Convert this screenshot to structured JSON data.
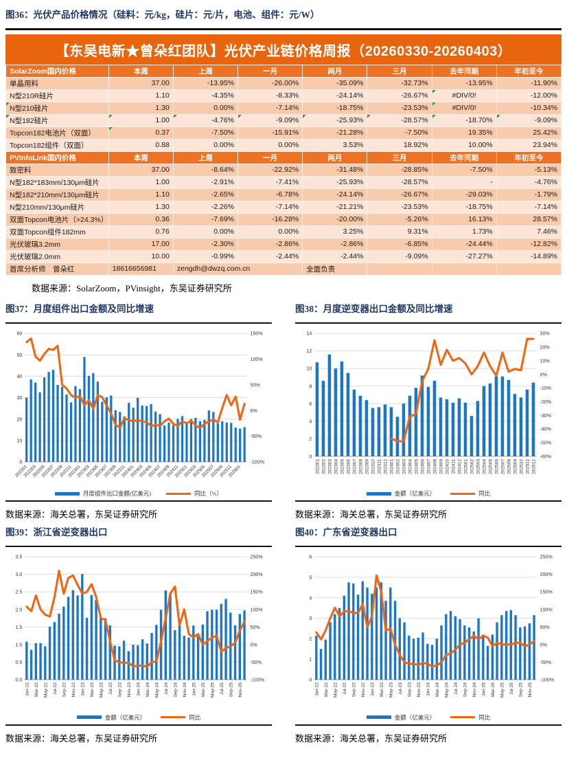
{
  "figure36": {
    "title": "图36：光伏产品价格情况（硅料：元/kg，硅片：元/片，电池、组件：元/W）",
    "source": "数据来源：SolarZoom，PVinsight，东吴证券研究所"
  },
  "price_table": {
    "title": "【东吴电新★曾朵红团队】光伏产业链价格周报（20260330-20260403）",
    "columns": [
      "本周",
      "上周",
      "一月",
      "两月",
      "三月",
      "去年同期",
      "年初至今"
    ],
    "sections": [
      {
        "header": "SolarZoom国内价格",
        "rows": [
          {
            "label": "单晶用料",
            "values": [
              "37.00",
              "-13.95%",
              "-26.00%",
              "-35.09%",
              "-32.73%",
              "-13.95%",
              "-11.90%"
            ],
            "flags": []
          },
          {
            "label": "N型210R硅片",
            "values": [
              "1.10",
              "-4.35%",
              "-8.33%",
              "-24.14%",
              "-26.67%",
              "#DIV/0!",
              "-12.00%"
            ],
            "flags": [
              6
            ]
          },
          {
            "label": "N型210硅片",
            "values": [
              "1.30",
              "0.00%",
              "-7.14%",
              "-18.75%",
              "-23.53%",
              "#DIV/0!",
              "-10.34%"
            ],
            "flags": [
              0,
              6
            ]
          },
          {
            "label": "N型182硅片",
            "values": [
              "1.00",
              "-4.76%",
              "-9.09%",
              "-25.93%",
              "-28.57%",
              "-18.70%",
              "-9.09%"
            ],
            "flags": [
              0,
              1,
              2,
              3,
              4,
              5,
              6,
              7
            ]
          },
          {
            "label": "Topcon182电池片（双面）",
            "values": [
              "0.37",
              "-7.50%",
              "-15.91%",
              "-21.28%",
              "-7.50%",
              "19.35%",
              "25.42%"
            ],
            "flags": [
              1
            ]
          },
          {
            "label": "Topcon182组件（双面）",
            "values": [
              "0.88",
              "0.00%",
              "0.00%",
              "3.53%",
              "18.92%",
              "10.00%",
              "23.94%"
            ],
            "flags": []
          }
        ]
      },
      {
        "header": "PVInfoLink国内价格",
        "rows": [
          {
            "label": "致密料",
            "values": [
              "37.00",
              "-8.64%",
              "-22.92%",
              "-31.48%",
              "-28.85%",
              "-7.50%",
              "-5.13%"
            ],
            "flags": []
          },
          {
            "label": "N型182*183mm/130μm硅片",
            "values": [
              "1.00",
              "-2.91%",
              "-7.41%",
              "-25.93%",
              "-28.57%",
              "-",
              "-4.76%"
            ],
            "flags": []
          },
          {
            "label": "N型182*210mm/130μm硅片",
            "values": [
              "1.10",
              "-2.65%",
              "-6.78%",
              "-24.14%",
              "-26.67%",
              "-29.03%",
              "-1.79%"
            ],
            "flags": []
          },
          {
            "label": "N型210mm/130μm硅片",
            "values": [
              "1.30",
              "-2.26%",
              "-7.14%",
              "-21.21%",
              "-23.53%",
              "-18.75%",
              "-7.14%"
            ],
            "flags": []
          },
          {
            "label": "双面Topcon电池片（>24.3%）",
            "values": [
              "0.36",
              "-7.69%",
              "-16.28%",
              "-20.00%",
              "-5.26%",
              "16.13%",
              "28.57%"
            ],
            "flags": []
          },
          {
            "label": "双面Topcon组件182mm",
            "values": [
              "0.76",
              "0.00%",
              "0.00%",
              "3.25%",
              "9.31%",
              "1.73%",
              "7.46%"
            ],
            "flags": []
          },
          {
            "label": "光伏玻璃3.2mm",
            "values": [
              "17.00",
              "-2.30%",
              "-2.86%",
              "-2.86%",
              "-6.85%",
              "-24.44%",
              "-12.82%"
            ],
            "flags": []
          },
          {
            "label": "光伏玻璃2.0mm",
            "values": [
              "10.00",
              "-0.99%",
              "-2.44%",
              "-2.44%",
              "-9.09%",
              "-27.27%",
              "-14.89%"
            ],
            "flags": []
          }
        ]
      }
    ],
    "footer": {
      "analyst": "首席分析师　曾朵红",
      "phone": "18616656981",
      "email": "zengdh@dwzq.com.cn",
      "note": "全面负责"
    }
  },
  "figures": [
    {
      "title": "图37：月度组件出口金额及同比增速",
      "source": "数据来源：海关总署，东吴证券研究所"
    },
    {
      "title": "图38：月度逆变器出口金额及同比增速",
      "source": "数据来源：海关总署，东吴证券研究所"
    },
    {
      "title": "图39：浙江省逆变器出口",
      "source": "数据来源：海关总署，东吴证券研究所"
    },
    {
      "title": "图40：广东省逆变器出口",
      "source": "数据来源：海关总署，东吴证券研究所"
    }
  ],
  "chart_style": {
    "bar": "#1B76C5",
    "line": "#F06511",
    "grid": "#DCDCDC",
    "axis": "#9A9A9A",
    "tick": "#333333"
  },
  "chart_data": [
    {
      "type": "bar",
      "title": "月度组件出口金额及同比增速",
      "legend_position": "bottom",
      "grid": true,
      "categories": [
        "202201",
        "202202",
        "202203",
        "202204",
        "202205",
        "202206",
        "202207",
        "202208",
        "202209",
        "202210",
        "202211",
        "202212",
        "202301",
        "202302",
        "202303",
        "202304",
        "202305",
        "202306",
        "202307",
        "202308",
        "202309",
        "202310",
        "202311",
        "202312",
        "202401",
        "202402",
        "202403",
        "202404",
        "202405",
        "202406",
        "202407",
        "202408",
        "202409",
        "202410",
        "202411",
        "202412",
        "202501",
        "202502",
        "202503",
        "202504",
        "202505",
        "202506",
        "202507",
        "202508",
        "202509",
        "202510",
        "202511",
        "202512",
        "202601",
        "202602"
      ],
      "bars": {
        "name": "月度组件出口金额(亿美元)",
        "values": [
          30.0,
          38.5,
          37.0,
          32.5,
          39.5,
          42.0,
          43.0,
          36.0,
          35.0,
          31.5,
          27.8,
          35.4,
          34.0,
          49.0,
          40.2,
          41.5,
          37.5,
          28.0,
          30.2,
          31.0,
          24.1,
          23.3,
          21.2,
          27.6,
          25.3,
          29.9,
          26.3,
          26.1,
          27.0,
          23.5,
          22.3,
          17.0,
          18.3,
          17.2,
          20.1,
          21.4,
          17.6,
          20.0,
          20.6,
          19.0,
          19.6,
          24.0,
          23.3,
          18.0,
          19.0,
          18.4,
          18.2,
          16.0,
          15.5,
          16.2
        ]
      },
      "line": {
        "name": "同比（%）",
        "values": [
          133,
          140,
          105,
          97,
          110,
          120,
          118,
          126,
          50,
          43,
          30,
          25,
          28,
          10,
          20,
          3,
          30,
          26,
          10,
          -6,
          -28,
          -33,
          -15,
          -19,
          -21,
          -19,
          -21,
          -23,
          -30,
          -28,
          -30,
          -21,
          -16,
          -26,
          -30,
          -21,
          -25,
          -20,
          -29,
          -34,
          -26,
          -21,
          -18,
          -23,
          5,
          30,
          10,
          27,
          -18,
          13
        ]
      },
      "left_axis": {
        "min": 0,
        "max": 60,
        "ticks": [
          0,
          10,
          20,
          30,
          40,
          50,
          60
        ],
        "dec": 0
      },
      "right_axis": {
        "min": -100,
        "max": 150,
        "ticks": [
          150,
          100,
          50,
          0,
          -50,
          -100
        ]
      },
      "x_label_every": 2,
      "rot": 45
    },
    {
      "type": "bar",
      "title": "月度逆变器出口金额及同比增速",
      "legend_position": "bottom",
      "grid": true,
      "categories": [
        "202301",
        "202302",
        "202303",
        "202304",
        "202305",
        "202306",
        "202307",
        "202308",
        "202309",
        "202310",
        "202311",
        "202312",
        "202401",
        "202402",
        "202403",
        "202404",
        "202405",
        "202406",
        "202407",
        "202408",
        "202409",
        "202410",
        "202411",
        "202412",
        "202501",
        "202502",
        "202503",
        "202504",
        "202505",
        "202506",
        "202507",
        "202508",
        "202509",
        "202510",
        "202511",
        "202512"
      ],
      "bars": {
        "name": "金额（亿美元）",
        "values": [
          10.7,
          8.6,
          11.6,
          10.0,
          10.8,
          9.5,
          7.6,
          6.9,
          6.4,
          5.5,
          5.6,
          5.9,
          5.6,
          4.5,
          6.0,
          6.9,
          7.8,
          9.2,
          7.9,
          8.6,
          6.7,
          6.5,
          6.1,
          6.6,
          6.1,
          4.6,
          6.3,
          8.0,
          8.3,
          9.1,
          9.1,
          8.7,
          7.1,
          6.7,
          7.6,
          8.4
        ]
      },
      "line": {
        "name": "同比",
        "values": [
          null,
          null,
          null,
          null,
          null,
          null,
          null,
          null,
          null,
          null,
          null,
          null,
          -47,
          -49,
          -49,
          -31,
          -29,
          -5,
          4,
          25,
          7,
          18,
          10,
          12,
          8,
          0,
          6,
          16,
          6,
          -1,
          16,
          2,
          4,
          3,
          26,
          26
        ]
      },
      "left_axis": {
        "min": 0,
        "max": 14,
        "ticks": [
          0,
          2,
          4,
          6,
          8,
          10,
          12,
          14
        ],
        "dec": 0
      },
      "right_axis": {
        "min": -60,
        "max": 30,
        "ticks": [
          30,
          20,
          10,
          0,
          -10,
          -20,
          -30,
          -40,
          -50,
          -60
        ]
      },
      "x_label_every": 1,
      "rot": 90
    },
    {
      "type": "bar",
      "title": "浙江省逆变器出口",
      "legend_position": "bottom",
      "grid": true,
      "categories": [
        "Jan-22",
        "Feb-22",
        "Mar-22",
        "Apr-22",
        "May-22",
        "Jun-22",
        "Jul-22",
        "Aug-22",
        "Sep-22",
        "Oct-22",
        "Nov-22",
        "Dec-22",
        "Jan-23",
        "Feb-23",
        "Mar-23",
        "Apr-23",
        "May-23",
        "Jun-23",
        "Jul-23",
        "Aug-23",
        "Sep-23",
        "Oct-23",
        "Nov-23",
        "Dec-23",
        "Jan-24",
        "Feb-24",
        "Mar-24",
        "Apr-24",
        "May-24",
        "Jun-24",
        "Jul-24",
        "Aug-24",
        "Sep-24",
        "Oct-24",
        "Nov-24",
        "Dec-24",
        "Jan-25",
        "Feb-25",
        "Mar-25",
        "Apr-25",
        "May-25",
        "Jun-25",
        "Jul-25",
        "Aug-25",
        "Sep-25",
        "Oct-25",
        "Nov-25",
        "Dec-25"
      ],
      "bars": {
        "name": "金额（亿美元）",
        "values": [
          1.08,
          0.85,
          1.04,
          1.04,
          0.95,
          1.51,
          1.64,
          1.88,
          2.08,
          2.36,
          2.55,
          2.4,
          3.01,
          1.76,
          2.41,
          2.27,
          1.76,
          1.75,
          1.55,
          0.97,
          0.95,
          1.11,
          0.81,
          0.99,
          0.98,
          1.15,
          1.03,
          1.33,
          1.56,
          1.99,
          2.54,
          2.46,
          1.41,
          1.61,
          1.25,
          1.2,
          1.54,
          1.25,
          1.57,
          1.95,
          1.99,
          1.99,
          2.16,
          2.3,
          1.91,
          1.55,
          1.87,
          1.97
        ]
      },
      "line": {
        "name": "同比",
        "values": [
          108,
          95,
          140,
          100,
          85,
          80,
          135,
          210,
          145,
          190,
          197,
          170,
          145,
          150,
          172,
          135,
          75,
          70,
          10,
          -45,
          -50,
          -52,
          -52,
          -62,
          -60,
          -60,
          -63,
          -50,
          -48,
          10,
          75,
          145,
          165,
          55,
          100,
          30,
          20,
          30,
          0,
          10,
          20,
          25,
          -20,
          -10,
          -5,
          5,
          40,
          65
        ]
      },
      "left_axis": {
        "min": 0,
        "max": 3.5,
        "ticks": [
          0,
          0.5,
          1,
          1.5,
          2,
          2.5,
          3,
          3.5
        ],
        "dec": 1
      },
      "right_axis": {
        "min": -100,
        "max": 250,
        "ticks": [
          250,
          200,
          150,
          100,
          50,
          0,
          -50,
          -100
        ]
      },
      "x_label_every": 2,
      "rot": 90
    },
    {
      "type": "bar",
      "title": "广东省逆变器出口",
      "legend_position": "bottom",
      "grid": true,
      "categories": [
        "Jan-22",
        "Feb-22",
        "Mar-22",
        "Apr-22",
        "May-22",
        "Jun-22",
        "Jul-22",
        "Aug-22",
        "Sep-22",
        "Oct-22",
        "Nov-22",
        "Dec-22",
        "Jan-23",
        "Feb-23",
        "Mar-23",
        "Apr-23",
        "May-23",
        "Jun-23",
        "Jul-23",
        "Aug-23",
        "Sep-23",
        "Oct-23",
        "Nov-23",
        "Dec-23",
        "Jan-24",
        "Feb-24",
        "Mar-24",
        "Apr-24",
        "May-24",
        "Jun-24",
        "Jul-24",
        "Aug-24",
        "Sep-24",
        "Oct-24",
        "Nov-24",
        "Dec-24",
        "Jan-25",
        "Feb-25",
        "Mar-25",
        "Apr-25",
        "May-25",
        "Jun-25",
        "Jul-25",
        "Aug-25",
        "Sep-25",
        "Oct-25",
        "Nov-25",
        "Dec-25"
      ],
      "bars": {
        "name": "金额（亿美元）",
        "values": [
          2.15,
          1.5,
          1.95,
          2.8,
          3.2,
          3.5,
          4.1,
          4.75,
          4.7,
          4.15,
          4.8,
          4.5,
          4.2,
          4.5,
          4.75,
          3.85,
          4.5,
          3.85,
          3.0,
          2.8,
          2.15,
          2.0,
          2.05,
          2.3,
          1.75,
          1.7,
          2.0,
          2.65,
          3.2,
          3.35,
          3.1,
          2.95,
          2.65,
          2.55,
          2.35,
          3.0,
          2.2,
          1.65,
          2.2,
          2.8,
          3.15,
          3.35,
          3.4,
          3.15,
          2.55,
          2.6,
          2.75,
          3.15
        ]
      },
      "line": {
        "name": "同比",
        "values": [
          35,
          15,
          40,
          75,
          105,
          80,
          95,
          95,
          90,
          90,
          115,
          50,
          80,
          197,
          150,
          40,
          45,
          0,
          -30,
          -50,
          -55,
          -55,
          -58,
          -52,
          -55,
          -62,
          -60,
          -50,
          -30,
          -25,
          -15,
          0,
          5,
          15,
          25,
          15,
          25,
          20,
          -5,
          5,
          0,
          0,
          0,
          5,
          5,
          -5,
          0,
          10
        ]
      },
      "left_axis": {
        "min": 0,
        "max": 6,
        "ticks": [
          0,
          1,
          2,
          3,
          4,
          5,
          6
        ],
        "dec": 0
      },
      "right_axis": {
        "min": -100,
        "max": 250,
        "ticks": [
          250,
          200,
          150,
          100,
          50,
          0,
          -50,
          -100
        ]
      },
      "x_label_every": 2,
      "rot": 90
    }
  ]
}
